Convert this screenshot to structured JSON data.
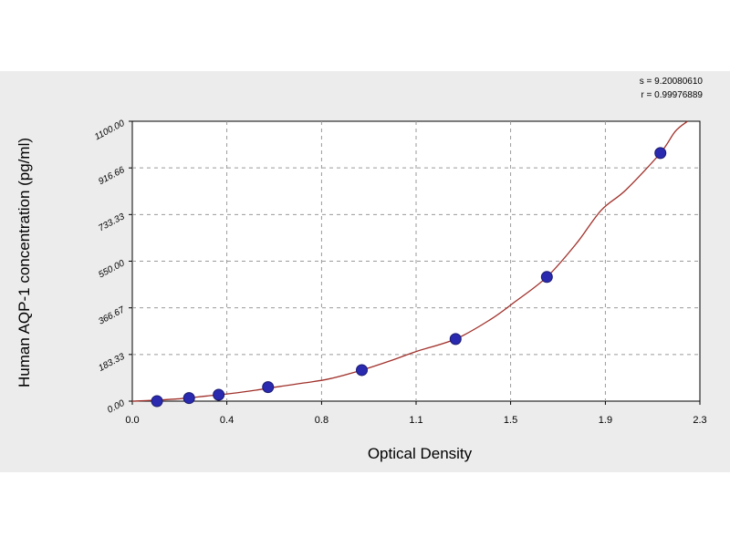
{
  "chart_data": {
    "type": "scatter",
    "xlabel": "Optical Density",
    "ylabel": "Human AQP-1 concentration (pg/ml)",
    "xlim": [
      0.0,
      2.3
    ],
    "ylim": [
      0.0,
      1100.0
    ],
    "x_ticks": [
      {
        "value": 0.0,
        "label": "0.0"
      },
      {
        "value": 0.383,
        "label": "0.4"
      },
      {
        "value": 0.767,
        "label": "0.8"
      },
      {
        "value": 1.15,
        "label": "1.1"
      },
      {
        "value": 1.533,
        "label": "1.5"
      },
      {
        "value": 1.917,
        "label": "1.9"
      },
      {
        "value": 2.3,
        "label": "2.3"
      }
    ],
    "y_ticks": [
      {
        "value": 0.0,
        "label": "0.00"
      },
      {
        "value": 183.33,
        "label": "183.33"
      },
      {
        "value": 366.67,
        "label": "366.67"
      },
      {
        "value": 550.0,
        "label": "550.00"
      },
      {
        "value": 733.33,
        "label": "733.33"
      },
      {
        "value": 916.66,
        "label": "916.66"
      },
      {
        "value": 1100.0,
        "label": "1100.00"
      }
    ],
    "grid": true,
    "points": [
      {
        "x": 0.1,
        "y": 0
      },
      {
        "x": 0.23,
        "y": 12
      },
      {
        "x": 0.35,
        "y": 25
      },
      {
        "x": 0.55,
        "y": 55
      },
      {
        "x": 0.93,
        "y": 122
      },
      {
        "x": 1.31,
        "y": 244
      },
      {
        "x": 1.68,
        "y": 488
      },
      {
        "x": 2.14,
        "y": 975
      }
    ],
    "fit_curve": [
      {
        "x": 0.0,
        "y": 0
      },
      {
        "x": 0.1,
        "y": 4
      },
      {
        "x": 0.2,
        "y": 10
      },
      {
        "x": 0.3,
        "y": 20
      },
      {
        "x": 0.4,
        "y": 30
      },
      {
        "x": 0.5,
        "y": 43
      },
      {
        "x": 0.6,
        "y": 58
      },
      {
        "x": 0.7,
        "y": 72
      },
      {
        "x": 0.8,
        "y": 88
      },
      {
        "x": 0.93,
        "y": 122
      },
      {
        "x": 1.05,
        "y": 160
      },
      {
        "x": 1.15,
        "y": 195
      },
      {
        "x": 1.31,
        "y": 244
      },
      {
        "x": 1.45,
        "y": 320
      },
      {
        "x": 1.55,
        "y": 390
      },
      {
        "x": 1.68,
        "y": 488
      },
      {
        "x": 1.8,
        "y": 620
      },
      {
        "x": 1.9,
        "y": 750
      },
      {
        "x": 2.0,
        "y": 830
      },
      {
        "x": 2.14,
        "y": 975
      },
      {
        "x": 2.2,
        "y": 1060
      },
      {
        "x": 2.25,
        "y": 1100
      }
    ],
    "stats": {
      "s_line": "s = 9.20080610",
      "r_line": "r = 0.99976889"
    },
    "colors": {
      "curve": "#a0302a",
      "point": "#2a2ab0",
      "grid": "#9a9a9a",
      "axis": "#000000",
      "band": "#ececec"
    }
  }
}
